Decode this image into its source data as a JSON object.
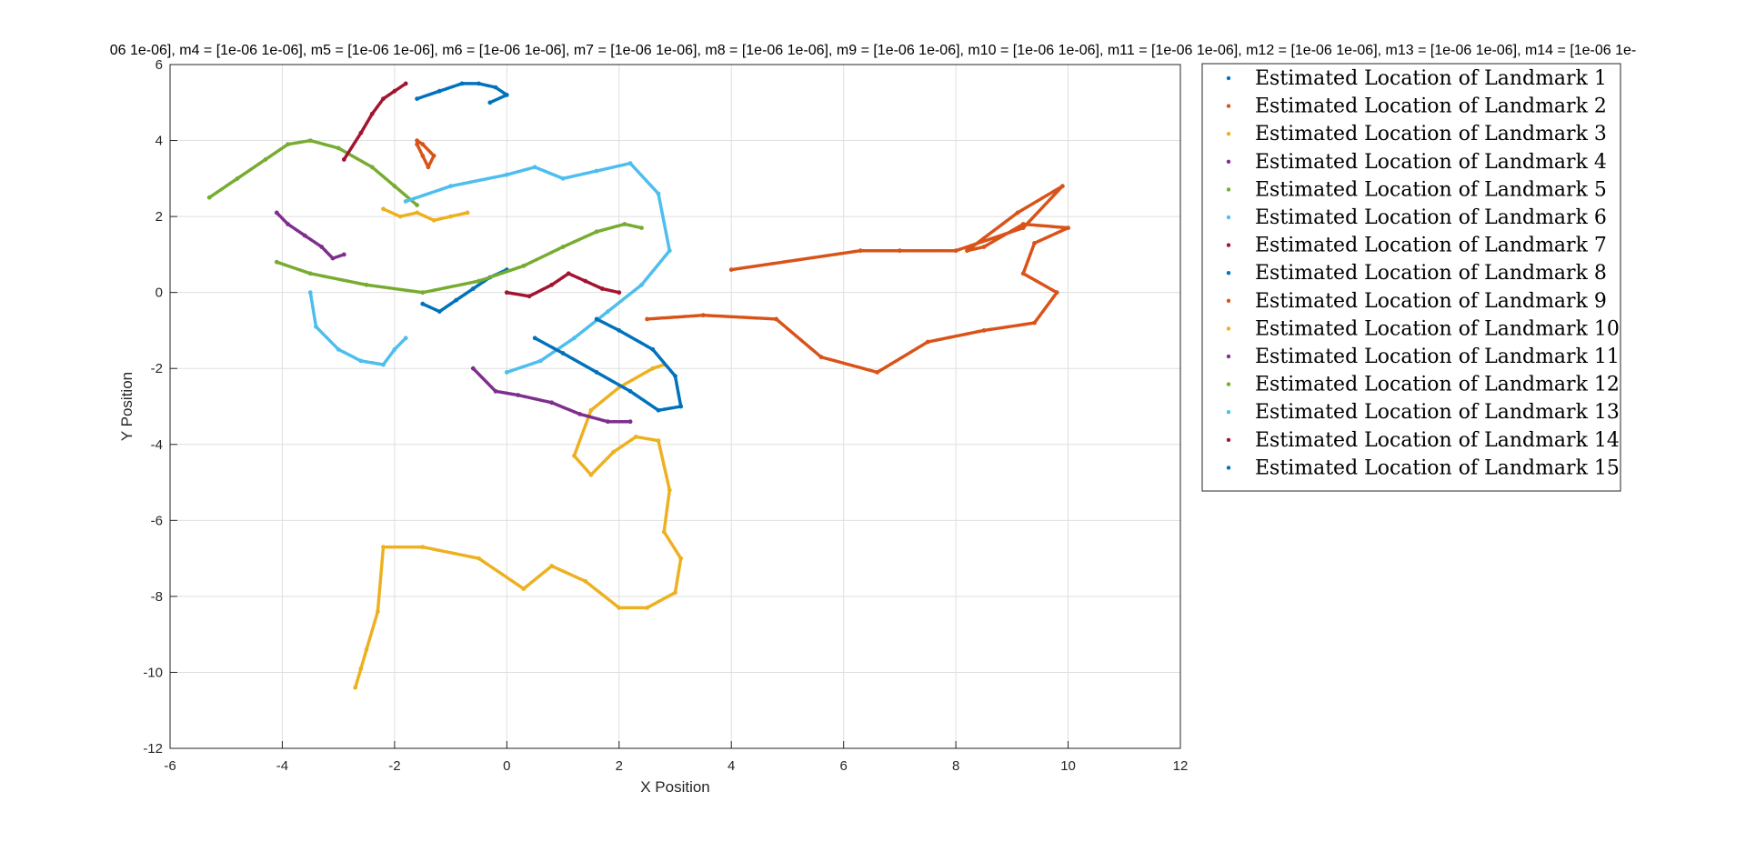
{
  "chart_data": {
    "type": "scatter",
    "title": "06 1e-06], m4 = [1e-06 1e-06], m5 = [1e-06 1e-06], m6 = [1e-06 1e-06], m7 = [1e-06 1e-06], m8 = [1e-06 1e-06], m9 = [1e-06 1e-06], m10 = [1e-06 1e-06], m11 = [1e-06 1e-06], m12 = [1e-06 1e-06], m13 = [1e-06 1e-06], m14 = [1e-06 1e-",
    "xlabel": "X Position",
    "ylabel": "Y Position",
    "xlim": [
      -6,
      12
    ],
    "ylim": [
      -12,
      6
    ],
    "xticks": [
      -6,
      -4,
      -2,
      0,
      2,
      4,
      6,
      8,
      10,
      12
    ],
    "yticks": [
      -12,
      -10,
      -8,
      -6,
      -4,
      -2,
      0,
      2,
      4,
      6
    ],
    "grid": true,
    "legend_position": "outside-right-top",
    "series": [
      {
        "name": "Estimated Location of Landmark 1",
        "color": "#0072BD",
        "x": [
          -1.5,
          -1.2,
          -0.9,
          -0.6,
          -0.3,
          0.0
        ],
        "y": [
          -0.3,
          -0.5,
          -0.2,
          0.1,
          0.4,
          0.6
        ]
      },
      {
        "name": "Estimated Location of Landmark 2",
        "color": "#D95319",
        "x": [
          -1.6,
          -1.5,
          -1.4,
          -1.3,
          -1.5,
          -1.6
        ],
        "y": [
          3.9,
          3.6,
          3.3,
          3.6,
          3.9,
          4.0
        ]
      },
      {
        "name": "Estimated Location of Landmark 3",
        "color": "#EDB120",
        "x": [
          -2.2,
          -1.9,
          -1.6,
          -1.3,
          -1.0,
          -0.7
        ],
        "y": [
          2.2,
          2.0,
          2.1,
          1.9,
          2.0,
          2.1
        ]
      },
      {
        "name": "Estimated Location of Landmark 4",
        "color": "#7E2F8E",
        "x": [
          -4.1,
          -3.9,
          -3.6,
          -3.3,
          -3.1,
          -2.9
        ],
        "y": [
          2.1,
          1.8,
          1.5,
          1.2,
          0.9,
          1.0
        ]
      },
      {
        "name": "Estimated Location of Landmark 5",
        "color": "#77AC30",
        "x": [
          -5.3,
          -4.8,
          -4.3,
          -3.9,
          -3.5,
          -3.0,
          -2.4,
          -2.0,
          -1.6
        ],
        "y": [
          2.5,
          3.0,
          3.5,
          3.9,
          4.0,
          3.8,
          3.3,
          2.8,
          2.3
        ]
      },
      {
        "name": "Estimated Location of Landmark 6",
        "color": "#4DBEEE",
        "x": [
          -3.5,
          -3.4,
          -3.0,
          -2.6,
          -2.2,
          -2.0,
          -1.8
        ],
        "y": [
          0.0,
          -0.9,
          -1.5,
          -1.8,
          -1.9,
          -1.5,
          -1.2
        ]
      },
      {
        "name": "Estimated Location of Landmark 7",
        "color": "#A2142F",
        "x": [
          -2.9,
          -2.6,
          -2.4,
          -2.2,
          -2.0,
          -1.8
        ],
        "y": [
          3.5,
          4.2,
          4.7,
          5.1,
          5.3,
          5.5
        ]
      },
      {
        "name": "Estimated Location of Landmark 8",
        "color": "#0072BD",
        "x": [
          -1.6,
          -1.2,
          -0.8,
          -0.5,
          -0.2,
          0.0,
          -0.3
        ],
        "y": [
          5.1,
          5.3,
          5.5,
          5.5,
          5.4,
          5.2,
          5.0
        ]
      },
      {
        "name": "Estimated Location of Landmark 9",
        "color": "#D95319",
        "x": [
          2.5,
          3.5,
          4.8,
          5.6,
          6.6,
          7.5,
          8.5,
          9.4,
          9.8,
          9.2,
          9.4,
          10.0,
          9.2,
          8.5,
          8.2,
          9.1,
          9.9,
          9.2,
          8.0,
          7.0,
          6.3,
          4.0
        ],
        "y": [
          -0.7,
          -0.6,
          -0.7,
          -1.7,
          -2.1,
          -1.3,
          -1.0,
          -0.8,
          0.0,
          0.5,
          1.3,
          1.7,
          1.8,
          1.2,
          1.1,
          2.1,
          2.8,
          1.7,
          1.1,
          1.1,
          1.1,
          0.6
        ]
      },
      {
        "name": "Estimated Location of Landmark 10",
        "color": "#EDB120",
        "x": [
          -2.7,
          -2.6,
          -2.5,
          -2.3,
          -2.2,
          -1.5,
          -0.5,
          0.3,
          0.8,
          1.4,
          2.0,
          2.5,
          3.0,
          3.1,
          2.8,
          2.9,
          2.7,
          2.3,
          1.9,
          1.5,
          1.2,
          1.5,
          2.0,
          2.6,
          2.8
        ],
        "y": [
          -10.4,
          -9.9,
          -9.4,
          -8.4,
          -6.7,
          -6.7,
          -7.0,
          -7.8,
          -7.2,
          -7.6,
          -8.3,
          -8.3,
          -7.9,
          -7.0,
          -6.3,
          -5.2,
          -3.9,
          -3.8,
          -4.2,
          -4.8,
          -4.3,
          -3.1,
          -2.5,
          -2.0,
          -1.9
        ]
      },
      {
        "name": "Estimated Location of Landmark 11",
        "color": "#7E2F8E",
        "x": [
          -0.6,
          -0.2,
          0.2,
          0.8,
          1.3,
          1.8,
          2.2
        ],
        "y": [
          -2.0,
          -2.6,
          -2.7,
          -2.9,
          -3.2,
          -3.4,
          -3.4
        ]
      },
      {
        "name": "Estimated Location of Landmark 12",
        "color": "#77AC30",
        "x": [
          -4.1,
          -3.5,
          -2.5,
          -1.5,
          -0.5,
          0.3,
          1.0,
          1.6,
          2.1,
          2.4
        ],
        "y": [
          0.8,
          0.5,
          0.2,
          0.0,
          0.3,
          0.7,
          1.2,
          1.6,
          1.8,
          1.7
        ]
      },
      {
        "name": "Estimated Location of Landmark 13",
        "color": "#4DBEEE",
        "x": [
          -1.8,
          -1.0,
          0.0,
          0.5,
          1.0,
          1.6,
          2.2,
          2.7,
          2.9,
          2.4,
          1.8,
          1.2,
          0.6,
          0.0
        ],
        "y": [
          2.4,
          2.8,
          3.1,
          3.3,
          3.0,
          3.2,
          3.4,
          2.6,
          1.1,
          0.2,
          -0.5,
          -1.2,
          -1.8,
          -2.1
        ]
      },
      {
        "name": "Estimated Location of Landmark 14",
        "color": "#A2142F",
        "x": [
          0.0,
          0.4,
          0.8,
          1.1,
          1.4,
          1.7,
          2.0
        ],
        "y": [
          0.0,
          -0.1,
          0.2,
          0.5,
          0.3,
          0.1,
          0.0
        ]
      },
      {
        "name": "Estimated Location of Landmark 15",
        "color": "#0072BD",
        "x": [
          0.5,
          1.0,
          1.6,
          2.2,
          2.7,
          3.1,
          3.0,
          2.6,
          2.0,
          1.6
        ],
        "y": [
          -1.2,
          -1.6,
          -2.1,
          -2.6,
          -3.1,
          -3.0,
          -2.2,
          -1.5,
          -1.0,
          -0.7
        ]
      }
    ]
  }
}
